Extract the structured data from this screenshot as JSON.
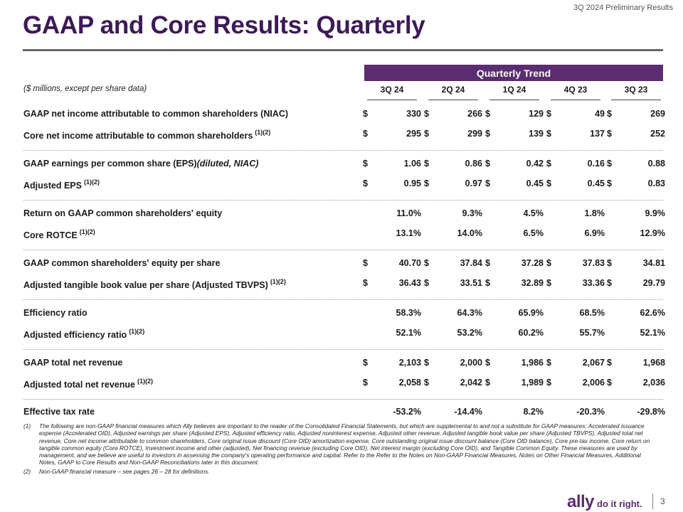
{
  "header": {
    "top_right": "3Q 2024 Preliminary Results",
    "title": "GAAP and Core Results: Quarterly"
  },
  "table": {
    "band_label": "Quarterly Trend",
    "units_note": "($ millions, except per share data)",
    "columns": [
      "3Q 24",
      "2Q 24",
      "1Q 24",
      "4Q 23",
      "3Q 23"
    ],
    "rows": [
      {
        "label": "GAAP net income attributable to common shareholders (NIAC)",
        "sup": "",
        "label_italic": "",
        "currency": "$",
        "values": [
          "330",
          "266",
          "129",
          "49",
          "269"
        ]
      },
      {
        "label": "Core net income attributable to common shareholders",
        "sup": "(1)(2)",
        "label_italic": "",
        "currency": "$",
        "values": [
          "295",
          "299",
          "139",
          "137",
          "252"
        ]
      },
      {
        "label": "GAAP earnings per common share (EPS)",
        "sup": "",
        "label_italic": "(diluted, NIAC)",
        "currency": "$",
        "values": [
          "1.06",
          "0.86",
          "0.42",
          "0.16",
          "0.88"
        ]
      },
      {
        "label": "Adjusted EPS",
        "sup": "(1)(2)",
        "label_italic": "",
        "currency": "$",
        "values": [
          "0.95",
          "0.97",
          "0.45",
          "0.45",
          "0.83"
        ]
      },
      {
        "label": "Return on GAAP common shareholders' equity",
        "sup": "",
        "label_italic": "",
        "currency": "",
        "values": [
          "11.0%",
          "9.3%",
          "4.5%",
          "1.8%",
          "9.9%"
        ]
      },
      {
        "label": "Core ROTCE",
        "sup": "(1)(2)",
        "label_italic": "",
        "currency": "",
        "values": [
          "13.1%",
          "14.0%",
          "6.5%",
          "6.9%",
          "12.9%"
        ]
      },
      {
        "label": "GAAP common shareholders' equity per share",
        "sup": "",
        "label_italic": "",
        "currency": "$",
        "values": [
          "40.70",
          "37.84",
          "37.28",
          "37.83",
          "34.81"
        ]
      },
      {
        "label": "Adjusted tangible book value per share (Adjusted TBVPS)",
        "sup": "(1)(2)",
        "label_italic": "",
        "currency": "$",
        "values": [
          "36.43",
          "33.51",
          "32.89",
          "33.36",
          "29.79"
        ]
      },
      {
        "label": "Efficiency ratio",
        "sup": "",
        "label_italic": "",
        "currency": "",
        "values": [
          "58.3%",
          "64.3%",
          "65.9%",
          "68.5%",
          "62.6%"
        ]
      },
      {
        "label": "Adjusted efficiency ratio",
        "sup": "(1)(2)",
        "label_italic": "",
        "currency": "",
        "values": [
          "52.1%",
          "53.2%",
          "60.2%",
          "55.7%",
          "52.1%"
        ]
      },
      {
        "label": "GAAP total net revenue",
        "sup": "",
        "label_italic": "",
        "currency": "$",
        "values": [
          "2,103",
          "2,000",
          "1,986",
          "2,067",
          "1,968"
        ]
      },
      {
        "label": "Adjusted total net revenue",
        "sup": "(1)(2)",
        "label_italic": "",
        "currency": "$",
        "values": [
          "2,058",
          "2,042",
          "1,989",
          "2,006",
          "2,036"
        ]
      },
      {
        "label": "Effective tax rate",
        "sup": "",
        "label_italic": "",
        "currency": "",
        "values": [
          "-53.2%",
          "-14.4%",
          "8.2%",
          "-20.3%",
          "-29.8%"
        ]
      }
    ]
  },
  "footnotes": [
    {
      "marker": "(1)",
      "text": "The following are non-GAAP financial measures which Ally believes are important to the reader of the Consolidated Financial Statements, but which are supplemental to and not a substitute for GAAP measures: Accelerated issuance expense (Accelerated OID), Adjusted earnings per share (Adjusted EPS), Adjusted efficiency ratio, Adjusted noninterest expense, Adjusted other revenue, Adjusted tangible book value per share (Adjusted TBVPS), Adjusted total net revenue, Core net income attributable to common shareholders, Core original issue discount (Core OID) amortization expense, Core outstanding original issue discount balance (Core OID balance), Core pre-tax income, Core return on tangible common equity (Core ROTCE), Investment income and other (adjusted), Net financing revenue (excluding Core OID), Net interest margin (excluding Core OID), and Tangible Common Equity. These measures are used by management, and we believe are useful to investors in assessing the company's operating performance and capital. Refer to the Refer to the Notes on Non-GAAP Financial Measures, Notes on Other Financial Measures, Additional Notes, GAAP to Core Results and Non-GAAP Reconciliations later in this document."
    },
    {
      "marker": "(2)",
      "text": "Non-GAAP financial measure – see pages 26 – 28 for definitions."
    }
  ],
  "footer": {
    "logo_word": "ally",
    "logo_tagline": "do it right.",
    "page_number": "3"
  }
}
